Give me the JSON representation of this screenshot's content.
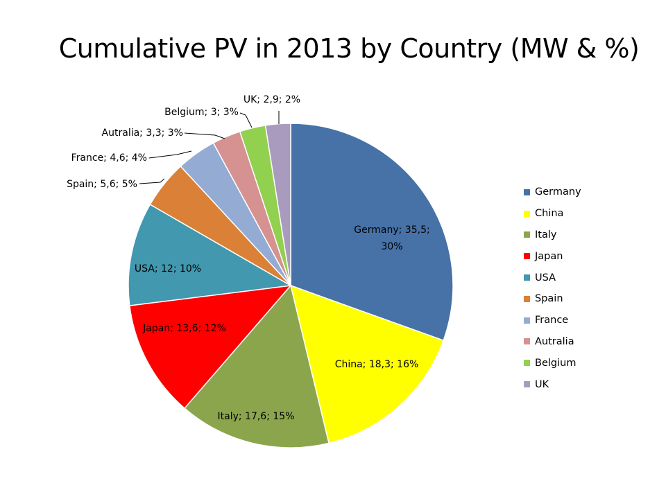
{
  "chart_data": {
    "type": "pie",
    "title": "Cumulative PV in 2013 by Country (MW & %)",
    "slices": [
      {
        "name": "Germany",
        "value": 35.5,
        "percent": 30,
        "label": "Germany; 35,5; 30%",
        "color": "#4672A8"
      },
      {
        "name": "China",
        "value": 18.3,
        "percent": 16,
        "label": "China; 18,3; 16%",
        "color": "#FFFF00"
      },
      {
        "name": "Italy",
        "value": 17.6,
        "percent": 15,
        "label": "Italy; 17,6; 15%",
        "color": "#8BA54D"
      },
      {
        "name": "Japan",
        "value": 13.6,
        "percent": 12,
        "label": "Japan; 13,6; 12%",
        "color": "#FF0000"
      },
      {
        "name": "USA",
        "value": 12,
        "percent": 10,
        "label": "USA; 12; 10%",
        "color": "#4298AE"
      },
      {
        "name": "Spain",
        "value": 5.6,
        "percent": 5,
        "label": "Spain; 5,6; 5%",
        "color": "#DA8137"
      },
      {
        "name": "France",
        "value": 4.6,
        "percent": 4,
        "label": "France; 4,6; 4%",
        "color": "#94ABD4"
      },
      {
        "name": "Autralia",
        "value": 3.3,
        "percent": 3,
        "label": "Autralia; 3,3; 3%",
        "color": "#D59291"
      },
      {
        "name": "Belgium",
        "value": 3,
        "percent": 3,
        "label": "Belgium; 3; 3%",
        "color": "#92D050"
      },
      {
        "name": "UK",
        "value": 2.9,
        "percent": 2,
        "label": "UK; 2,9; 2%",
        "color": "#A99BBD"
      }
    ],
    "legend_position": "right"
  }
}
